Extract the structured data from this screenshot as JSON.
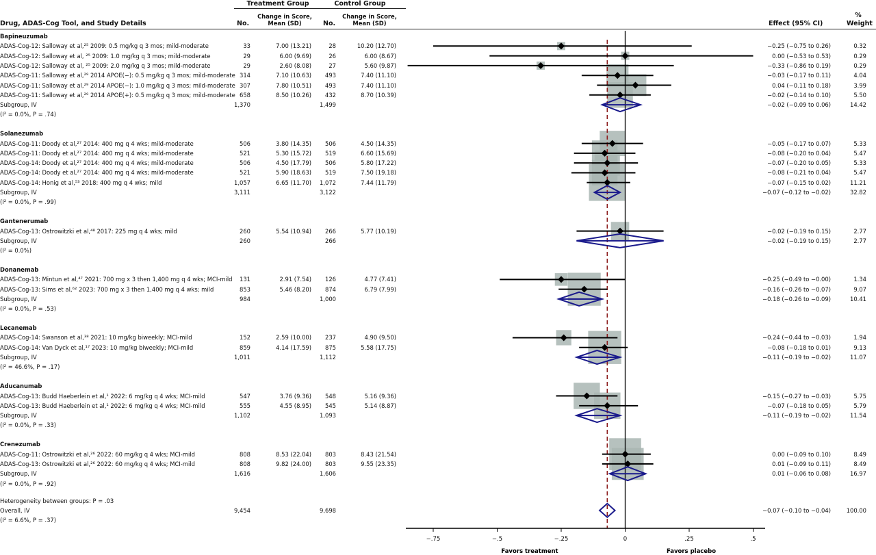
{
  "headers": {
    "col_study": "Drug, ADAS-Cog Tool, and Study Details",
    "treatment_group": "Treatment Group",
    "control_group": "Control Group",
    "no_t": "No.",
    "change_t": "Change in Score,\nMean (SD)",
    "no_c": "No.",
    "change_c": "Change in Score,\nMean (SD)",
    "effect": "Effect (95% CI)",
    "weight_pct": "%",
    "weight": "Weight"
  },
  "groups": [
    {
      "name": "Bapineuzumab",
      "rows": [
        {
          "label": "ADAS-Cog-12: Salloway et al,²⁵ 2009: 0.5 mg/kg q 3 mos; mild-moderate",
          "nt": "33",
          "mt": "7.00 (13.21)",
          "nc": "28",
          "mc": "10.20 (12.70)",
          "effect": "−0.25 (−0.75 to 0.26)",
          "weight": "0.32"
        },
        {
          "label": "ADAS-Cog-12: Salloway et al, ²⁵ 2009: 1.0 mg/kg q 3 mos; mild-moderate",
          "nt": "29",
          "mt": "6.00 (9.69)",
          "nc": "26",
          "mc": "6.00 (8.67)",
          "effect": "0.00 (−0.53 to 0.53)",
          "weight": "0.29"
        },
        {
          "label": "ADAS-Cog-12: Salloway et al, ²⁵ 2009: 2.0 mg/kg q 3 mos; mild-moderate",
          "nt": "29",
          "mt": "2.60 (8.08)",
          "nc": "27",
          "mc": "5.60 (9.87)",
          "effect": "−0.33 (−0.86 to 0.19)",
          "weight": "0.29"
        },
        {
          "label": "ADAS-Cog-11: Salloway et al,²⁹ 2014 APOE(−): 0.5 mg/kg q 3 mos; mild-moderate",
          "nt": "314",
          "mt": "7.10 (10.63)",
          "nc": "493",
          "mc": "7.40 (11.10)",
          "effect": "−0.03 (−0.17 to 0.11)",
          "weight": "4.04"
        },
        {
          "label": "ADAS-Cog-11: Salloway et al,²⁹ 2014 APOE(−): 1.0 mg/kg q 3 mos; mild-moderate",
          "nt": "307",
          "mt": "7.80 (10.51)",
          "nc": "493",
          "mc": "7.40 (11.10)",
          "effect": "0.04 (−0.11 to 0.18)",
          "weight": "3.99"
        },
        {
          "label": "ADAS-Cog-11: Salloway et al,²⁹ 2014 APOE(+): 0.5 mg/kg q 3 mos; mild-moderate",
          "nt": "658",
          "mt": "8.50 (10.26)",
          "nc": "432",
          "mc": "8.70 (10.39)",
          "effect": "−0.02 (−0.14 to 0.10)",
          "weight": "5.50"
        }
      ],
      "subgroup": {
        "label": "Subgroup, IV",
        "nt": "1,370",
        "nc": "1,499",
        "effect": "−0.02 (−0.09 to 0.06)",
        "weight": "14.42"
      },
      "het": "(I² = 0.0%, P = .74)"
    },
    {
      "name": "Solanezumab",
      "rows": [
        {
          "label": "ADAS-Cog-11: Doody et al,²⁷ 2014: 400 mg q 4 wks; mild-moderate",
          "nt": "506",
          "mt": "3.80 (14.35)",
          "nc": "506",
          "mc": "4.50 (14.35)",
          "effect": "−0.05 (−0.17 to 0.07)",
          "weight": "5.33"
        },
        {
          "label": "ADAS-Cog-11: Doody et al,²⁷ 2014: 400 mg q 4 wks; mild-moderate",
          "nt": "521",
          "mt": "5.30 (15.72)",
          "nc": "519",
          "mc": "6.60 (15.69)",
          "effect": "−0.08 (−0.20 to 0.04)",
          "weight": "5.47"
        },
        {
          "label": "ADAS-Cog-14: Doody et al,²⁷ 2014: 400 mg q 4 wks; mild-moderate",
          "nt": "506",
          "mt": "4.50 (17.79)",
          "nc": "506",
          "mc": "5.80 (17.22)",
          "effect": "−0.07 (−0.20 to 0.05)",
          "weight": "5.33"
        },
        {
          "label": "ADAS-Cog-14: Doody et al,²⁷ 2014: 400 mg q 4 wks; mild-moderate",
          "nt": "521",
          "mt": "5.90 (18.63)",
          "nc": "519",
          "mc": "7.50 (19.18)",
          "effect": "−0.08 (−0.21 to 0.04)",
          "weight": "5.47"
        },
        {
          "label": "ADAS-Cog-14: Honig et al,⁵³ 2018: 400 mg q 4 wks; mild",
          "nt": "1,057",
          "mt": "6.65 (11.70)",
          "nc": "1,072",
          "mc": "7.44 (11.79)",
          "effect": "−0.07 (−0.15 to 0.02)",
          "weight": "11.21"
        }
      ],
      "subgroup": {
        "label": "Subgroup, IV",
        "nt": "3,111",
        "nc": "3,122",
        "effect": "−0.07 (−0.12 to −0.02)",
        "weight": "32.82"
      },
      "het": "(I² = 0.0%, P = .99)"
    },
    {
      "name": "Gantenerumab",
      "rows": [
        {
          "label": "ADAS-Cog-13: Ostrowitzki et al,⁴⁸ 2017: 225 mg q 4 wks; mild",
          "nt": "260",
          "mt": "5.54 (10.94)",
          "nc": "266",
          "mc": "5.77 (10.19)",
          "effect": "−0.02 (−0.19 to 0.15)",
          "weight": "2.77"
        }
      ],
      "subgroup": {
        "label": "Subgroup, IV",
        "nt": "260",
        "nc": "266",
        "effect": "−0.02 (−0.19 to 0.15)",
        "weight": "2.77"
      },
      "het": "(I² = 0.0%)"
    },
    {
      "name": "Donanemab",
      "rows": [
        {
          "label": "ADAS-Cog-13: Mintun et al,⁴⁷ 2021: 700 mg x 3 then 1,400 mg q 4 wks; MCI-mild",
          "nt": "131",
          "mt": "2.91 (7.54)",
          "nc": "126",
          "mc": "4.77 (7.41)",
          "effect": "−0.25 (−0.49 to −0.00)",
          "weight": "1.34"
        },
        {
          "label": "ADAS-Cog-13: Sims et al,⁶² 2023: 700 mg x 3 then 1,400 mg q 4 wks; mild",
          "nt": "853",
          "mt": "5.46 (8.20)",
          "nc": "874",
          "mc": "6.79 (7.99)",
          "effect": "−0.16 (−0.26 to −0.07)",
          "weight": "9.07"
        }
      ],
      "subgroup": {
        "label": "Subgroup, IV",
        "nt": "984",
        "nc": "1,000",
        "effect": "−0.18 (−0.26 to −0.09)",
        "weight": "10.41"
      },
      "het": "(I² = 0.0%, P = .53)"
    },
    {
      "name": "Lecanemab",
      "rows": [
        {
          "label": "ADAS-Cog-14: Swanson et al,³⁸ 2021: 10 mg/kg biweekly; MCI-mild",
          "nt": "152",
          "mt": "2.59 (10.00)",
          "nc": "237",
          "mc": "4.90 (9.50)",
          "effect": "−0.24 (−0.44 to −0.03)",
          "weight": "1.94"
        },
        {
          "label": "ADAS-Cog-14: Van Dyck et al,¹⁷ 2023: 10 mg/kg biweekly; MCI-mild",
          "nt": "859",
          "mt": "4.14 (17.59)",
          "nc": "875",
          "mc": "5.58 (17.75)",
          "effect": "−0.08 (−0.18 to 0.01)",
          "weight": "9.13"
        }
      ],
      "subgroup": {
        "label": "Subgroup, IV",
        "nt": "1,011",
        "nc": "1,112",
        "effect": "−0.11 (−0.19 to −0.02)",
        "weight": "11.07"
      },
      "het": "(I² = 46.6%, P = .17)"
    },
    {
      "name": "Aducanumab",
      "rows": [
        {
          "label": "ADAS-Cog-13: Budd Haeberlein et al,¹ 2022: 6 mg/kg q 4 wks; MCI-mild",
          "nt": "547",
          "mt": "3.76 (9.36)",
          "nc": "548",
          "mc": "5.16 (9.36)",
          "effect": "−0.15 (−0.27 to −0.03)",
          "weight": "5.75"
        },
        {
          "label": "ADAS-Cog-13: Budd Haeberlein et al,¹ 2022: 6 mg/kg q 4 wks; MCI-mild",
          "nt": "555",
          "mt": "4.55 (8.95)",
          "nc": "545",
          "mc": "5.14 (8.87)",
          "effect": "−0.07 (−0.18 to 0.05)",
          "weight": "5.79"
        }
      ],
      "subgroup": {
        "label": "Subgroup, IV",
        "nt": "1,102",
        "nc": "1,093",
        "effect": "−0.11 (−0.19 to −0.02)",
        "weight": "11.54"
      },
      "het": "(I² = 0.0%, P = .33)"
    },
    {
      "name": "Crenezumab",
      "rows": [
        {
          "label": "ADAS-Cog-11: Ostrowitzki et al,²⁶ 2022: 60 mg/kg q 4 wks; MCI-mild",
          "nt": "808",
          "mt": "8.53 (22.04)",
          "nc": "803",
          "mc": "8.43 (21.54)",
          "effect": "0.00 (−0.09 to 0.10)",
          "weight": "8.49"
        },
        {
          "label": "ADAS-Cog-13: Ostrowitzki et al,²⁶ 2022: 60 mg/kg q 4 wks; MCI-mild",
          "nt": "808",
          "mt": "9.82 (24.00)",
          "nc": "803",
          "mc": "9.55 (23.35)",
          "effect": "0.01 (−0.09 to 0.11)",
          "weight": "8.49"
        }
      ],
      "subgroup": {
        "label": "Subgroup, IV",
        "nt": "1,616",
        "nc": "1,606",
        "effect": "0.01 (−0.06 to 0.08)",
        "weight": "16.97"
      },
      "het": "(I² = 0.0%, P = .92)"
    }
  ],
  "between_groups": "Heterogeneity between groups: P = .03",
  "overall": {
    "label": "Overall, IV",
    "nt": "9,454",
    "nc": "9,698",
    "effect": "−0.07 (−0.10 to −0.04)",
    "weight": "100.00",
    "het": "(I² = 6.6%, P = .37)"
  },
  "axis": {
    "ticks": [
      "−.75",
      "−.5",
      "−.25",
      "0",
      ".25",
      ".5"
    ],
    "favors_left": "Favors treatment",
    "favors_right": "Favors placebo"
  },
  "colors": {
    "diamond": "#1a1a8c",
    "box": "#a9b6b3",
    "ref_line": "#8b1a1a",
    "line": "#000000"
  },
  "chart_data": {
    "type": "forest",
    "xlim": [
      -0.85,
      0.5
    ],
    "xticks": [
      -0.75,
      -0.5,
      -0.25,
      0,
      0.25,
      0.5
    ],
    "overall_effect": -0.07,
    "studies": [
      {
        "group": "Bapineuzumab",
        "est": -0.25,
        "lo": -0.75,
        "hi": 0.26,
        "weight": 0.32
      },
      {
        "group": "Bapineuzumab",
        "est": 0.0,
        "lo": -0.53,
        "hi": 0.53,
        "weight": 0.29
      },
      {
        "group": "Bapineuzumab",
        "est": -0.33,
        "lo": -0.86,
        "hi": 0.19,
        "weight": 0.29
      },
      {
        "group": "Bapineuzumab",
        "est": -0.03,
        "lo": -0.17,
        "hi": 0.11,
        "weight": 4.04
      },
      {
        "group": "Bapineuzumab",
        "est": 0.04,
        "lo": -0.11,
        "hi": 0.18,
        "weight": 3.99
      },
      {
        "group": "Bapineuzumab",
        "est": -0.02,
        "lo": -0.14,
        "hi": 0.1,
        "weight": 5.5
      },
      {
        "group": "Solanezumab",
        "est": -0.05,
        "lo": -0.17,
        "hi": 0.07,
        "weight": 5.33
      },
      {
        "group": "Solanezumab",
        "est": -0.08,
        "lo": -0.2,
        "hi": 0.04,
        "weight": 5.47
      },
      {
        "group": "Solanezumab",
        "est": -0.07,
        "lo": -0.2,
        "hi": 0.05,
        "weight": 5.33
      },
      {
        "group": "Solanezumab",
        "est": -0.08,
        "lo": -0.21,
        "hi": 0.04,
        "weight": 5.47
      },
      {
        "group": "Solanezumab",
        "est": -0.07,
        "lo": -0.15,
        "hi": 0.02,
        "weight": 11.21
      },
      {
        "group": "Gantenerumab",
        "est": -0.02,
        "lo": -0.19,
        "hi": 0.15,
        "weight": 2.77
      },
      {
        "group": "Donanemab",
        "est": -0.25,
        "lo": -0.49,
        "hi": -0.0,
        "weight": 1.34
      },
      {
        "group": "Donanemab",
        "est": -0.16,
        "lo": -0.26,
        "hi": -0.07,
        "weight": 9.07
      },
      {
        "group": "Lecanemab",
        "est": -0.24,
        "lo": -0.44,
        "hi": -0.03,
        "weight": 1.94
      },
      {
        "group": "Lecanemab",
        "est": -0.08,
        "lo": -0.18,
        "hi": 0.01,
        "weight": 9.13
      },
      {
        "group": "Aducanumab",
        "est": -0.15,
        "lo": -0.27,
        "hi": -0.03,
        "weight": 5.75
      },
      {
        "group": "Aducanumab",
        "est": -0.07,
        "lo": -0.18,
        "hi": 0.05,
        "weight": 5.79
      },
      {
        "group": "Crenezumab",
        "est": 0.0,
        "lo": -0.09,
        "hi": 0.1,
        "weight": 8.49
      },
      {
        "group": "Crenezumab",
        "est": 0.01,
        "lo": -0.09,
        "hi": 0.11,
        "weight": 8.49
      }
    ],
    "subgroups": [
      {
        "group": "Bapineuzumab",
        "est": -0.02,
        "lo": -0.09,
        "hi": 0.06
      },
      {
        "group": "Solanezumab",
        "est": -0.07,
        "lo": -0.12,
        "hi": -0.02
      },
      {
        "group": "Gantenerumab",
        "est": -0.02,
        "lo": -0.19,
        "hi": 0.15
      },
      {
        "group": "Donanemab",
        "est": -0.18,
        "lo": -0.26,
        "hi": -0.09
      },
      {
        "group": "Lecanemab",
        "est": -0.11,
        "lo": -0.19,
        "hi": -0.02
      },
      {
        "group": "Aducanumab",
        "est": -0.11,
        "lo": -0.19,
        "hi": -0.02
      },
      {
        "group": "Crenezumab",
        "est": 0.01,
        "lo": -0.06,
        "hi": 0.08
      }
    ],
    "overall": {
      "est": -0.07,
      "lo": -0.1,
      "hi": -0.04
    }
  }
}
